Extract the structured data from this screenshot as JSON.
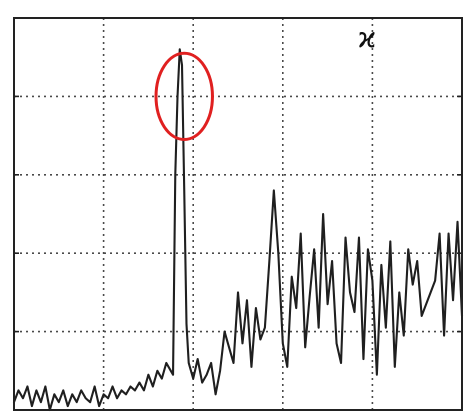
{
  "chart_data": {
    "type": "line",
    "title": "",
    "xlabel": "",
    "ylabel": "",
    "xlim": [
      0,
      100
    ],
    "ylim": [
      0,
      100
    ],
    "grid": true,
    "legend": "none",
    "series": [
      {
        "color": "#1f1f1f",
        "x": [
          0,
          1,
          2,
          3,
          4,
          5,
          6,
          7,
          8,
          9,
          10,
          11,
          12,
          13,
          14,
          15,
          16,
          17,
          18,
          19,
          20,
          21,
          22,
          23,
          24,
          25,
          26,
          27,
          28,
          29,
          30,
          31,
          32,
          33,
          34,
          35,
          35.5,
          36,
          36.5,
          37,
          37.5,
          38,
          38.5,
          39,
          40,
          41,
          42,
          43,
          44,
          45,
          46,
          47,
          48,
          49,
          50,
          51,
          52,
          53,
          54,
          55,
          56,
          57,
          58,
          59,
          60,
          61,
          62,
          63,
          64,
          65,
          66,
          67,
          68,
          69,
          70,
          71,
          72,
          73,
          74,
          75,
          76,
          77,
          78,
          79,
          80,
          81,
          82,
          83,
          84,
          85,
          86,
          87,
          88,
          89,
          90,
          91,
          92,
          93,
          94,
          95,
          96,
          97,
          98,
          99,
          100
        ],
        "values": [
          2,
          5,
          3,
          6,
          1,
          5,
          2,
          6,
          0,
          4,
          2,
          5,
          1,
          4,
          2,
          5,
          3,
          2,
          6,
          1,
          4,
          3,
          6,
          3,
          5,
          4,
          6,
          5,
          7,
          5,
          9,
          6,
          10,
          8,
          12,
          10,
          9,
          60,
          80,
          92,
          88,
          56,
          22,
          12,
          8,
          13,
          7,
          9,
          12,
          4,
          10,
          20,
          16,
          12,
          30,
          17,
          28,
          11,
          26,
          18,
          21,
          38,
          56,
          40,
          17,
          11,
          34,
          26,
          45,
          16,
          29,
          41,
          21,
          50,
          27,
          38,
          17,
          12,
          44,
          30,
          25,
          44,
          13,
          41,
          33,
          9,
          37,
          21,
          43,
          11,
          30,
          19,
          41,
          32,
          38,
          24,
          27,
          30,
          33,
          45,
          19,
          45,
          28,
          48,
          24
        ]
      }
    ],
    "annotations": {
      "marker_symbol": "ϰ",
      "highlight": {
        "shape": "circle",
        "color": "#e02020",
        "x": 38,
        "y": 80,
        "rx": 6.3,
        "ry": 11
      }
    }
  }
}
